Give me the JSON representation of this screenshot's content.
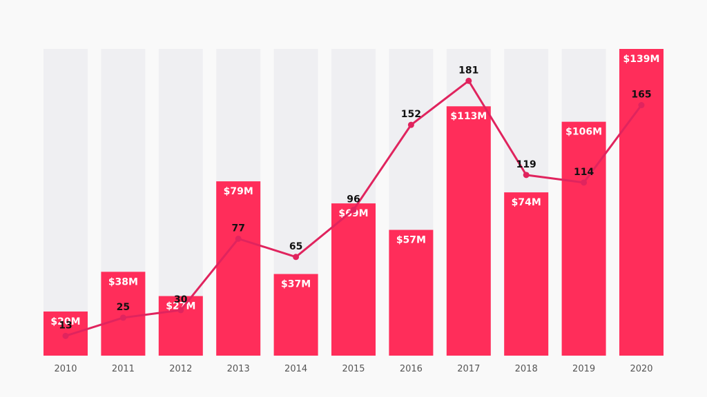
{
  "colors": {
    "background": "#f9f9f9",
    "bar_track": "#efeff2",
    "bar": "#ff2d5a",
    "line": "#e0245e",
    "line_label": "#111111",
    "bar_label": "#ffffff",
    "axis_label": "#555555"
  },
  "chart_data": {
    "type": "bar",
    "title": "",
    "xlabel": "",
    "ylabel": "",
    "categories": [
      "2010",
      "2011",
      "2012",
      "2013",
      "2014",
      "2015",
      "2016",
      "2017",
      "2018",
      "2019",
      "2020"
    ],
    "series": [
      {
        "kind": "bar",
        "values": [
          20,
          38,
          27,
          79,
          37,
          69,
          57,
          113,
          74,
          106,
          139
        ],
        "labels": [
          "$20M",
          "$38M",
          "$27M",
          "$79M",
          "$37M",
          "$69M",
          "$57M",
          "$113M",
          "$74M",
          "$106M",
          "$139M"
        ]
      },
      {
        "kind": "line",
        "values": [
          13,
          25,
          30,
          77,
          65,
          96,
          152,
          181,
          119,
          114,
          165
        ],
        "labels": [
          "13",
          "25",
          "30",
          "77",
          "65",
          "96",
          "152",
          "181",
          "119",
          "114",
          "165"
        ]
      }
    ],
    "ylim_bars": [
      0,
      139
    ],
    "ylim_line": [
      0,
      202
    ],
    "grid": false,
    "legend": "none"
  }
}
